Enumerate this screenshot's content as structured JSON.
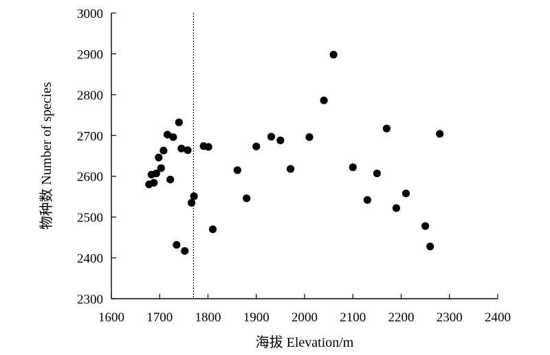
{
  "chart_data": {
    "type": "scatter",
    "xlabel": "海拔 Elevation/m",
    "ylabel": "物种数 Number of species",
    "xlim": [
      1600,
      2400
    ],
    "ylim": [
      2300,
      3000
    ],
    "xticks": [
      1600,
      1700,
      1800,
      1900,
      2000,
      2100,
      2200,
      2300,
      2400
    ],
    "yticks": [
      2300,
      2400,
      2500,
      2600,
      2700,
      2800,
      2900,
      3000
    ],
    "xtick_labels": [
      "1600",
      "1700",
      "1800",
      "1900",
      "2000",
      "2100",
      "2200",
      "2300",
      "2400"
    ],
    "ytick_labels": [
      "2300",
      "2400",
      "2500",
      "2600",
      "2700",
      "2800",
      "2900",
      "3000"
    ],
    "grid": false,
    "legend": "none",
    "marker_color": "#000000",
    "reference_line": {
      "orientation": "vertical",
      "x": 1770,
      "style": "dotted"
    },
    "series": [
      {
        "points": [
          {
            "x": 1678,
            "y": 2580
          },
          {
            "x": 1683,
            "y": 2604
          },
          {
            "x": 1688,
            "y": 2584
          },
          {
            "x": 1693,
            "y": 2607
          },
          {
            "x": 1698,
            "y": 2646
          },
          {
            "x": 1703,
            "y": 2620
          },
          {
            "x": 1708,
            "y": 2663
          },
          {
            "x": 1716,
            "y": 2702
          },
          {
            "x": 1722,
            "y": 2592
          },
          {
            "x": 1728,
            "y": 2696
          },
          {
            "x": 1735,
            "y": 2432
          },
          {
            "x": 1740,
            "y": 2732
          },
          {
            "x": 1745,
            "y": 2668
          },
          {
            "x": 1752,
            "y": 2417
          },
          {
            "x": 1758,
            "y": 2664
          },
          {
            "x": 1766,
            "y": 2535
          },
          {
            "x": 1771,
            "y": 2551
          },
          {
            "x": 1791,
            "y": 2674
          },
          {
            "x": 1801,
            "y": 2672
          },
          {
            "x": 1810,
            "y": 2470
          },
          {
            "x": 1861,
            "y": 2615
          },
          {
            "x": 1880,
            "y": 2546
          },
          {
            "x": 1900,
            "y": 2673
          },
          {
            "x": 1931,
            "y": 2697
          },
          {
            "x": 1950,
            "y": 2688
          },
          {
            "x": 1971,
            "y": 2618
          },
          {
            "x": 2010,
            "y": 2696
          },
          {
            "x": 2040,
            "y": 2786
          },
          {
            "x": 2060,
            "y": 2898
          },
          {
            "x": 2100,
            "y": 2622
          },
          {
            "x": 2130,
            "y": 2542
          },
          {
            "x": 2150,
            "y": 2607
          },
          {
            "x": 2170,
            "y": 2717
          },
          {
            "x": 2190,
            "y": 2522
          },
          {
            "x": 2210,
            "y": 2558
          },
          {
            "x": 2250,
            "y": 2478
          },
          {
            "x": 2260,
            "y": 2428
          },
          {
            "x": 2280,
            "y": 2704
          }
        ]
      }
    ]
  }
}
